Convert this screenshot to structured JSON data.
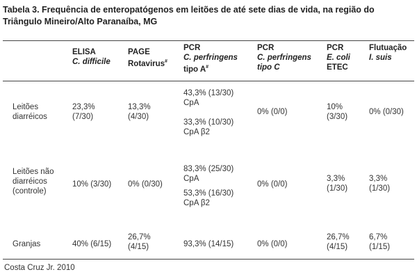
{
  "title": {
    "line1": "Tabela 3. Frequência de enteropatógenos em leitões de até sete dias de vida, na região do",
    "line2": "Triângulo Mineiro/Alto Paranaíba, MG"
  },
  "columns": [
    {
      "l1": "ELISA",
      "l2": "C. difficile",
      "l3": ""
    },
    {
      "l1": "PAGE",
      "l2": "Rotavirus",
      "sup2": "#",
      "l3": ""
    },
    {
      "l1": "PCR",
      "l2": "C. perfringens",
      "l3": "tipo A",
      "sup3": "#"
    },
    {
      "l1": "PCR",
      "l2": "C. perfringens",
      "l3": "tipo C"
    },
    {
      "l1": "PCR",
      "l2": "E. coli",
      "l3": "ETEC"
    },
    {
      "l1": "Flutuação",
      "l2": "I. suis",
      "l3": ""
    }
  ],
  "rows": [
    {
      "label": [
        "Leitões",
        "diarréicos"
      ],
      "elisa": [
        "23,3%",
        "(7/30)"
      ],
      "page": [
        "13,3%",
        "(4/30)"
      ],
      "pcr_a": [
        "43,3% (13/30)",
        "CpA",
        "33,3% (10/30)",
        "CpA β2"
      ],
      "pcr_c": [
        "0% (0/0)"
      ],
      "ecoli": [
        "10%",
        "(3/30)"
      ],
      "flut": [
        "0% (0/30)"
      ]
    },
    {
      "label": [
        "Leitões não",
        "diarréicos",
        "(controle)"
      ],
      "elisa": [
        "10% (3/30)"
      ],
      "page": [
        "0% (0/30)"
      ],
      "pcr_a": [
        "83,3% (25/30)",
        "CpA",
        "53,3% (16/30)",
        "CpA β2"
      ],
      "pcr_c": [
        "0% (0/0)"
      ],
      "ecoli": [
        "3,3%",
        "(1/30)"
      ],
      "flut": [
        "3,3%",
        "(1/30)"
      ]
    },
    {
      "label": [
        "Granjas"
      ],
      "elisa": [
        "40% (6/15)"
      ],
      "page": [
        "26,7%",
        "(4/15)"
      ],
      "pcr_a": [
        "93,3% (14/15)"
      ],
      "pcr_c": [
        "0% (0/0)"
      ],
      "ecoli": [
        "26,7%",
        "(4/15)"
      ],
      "flut": [
        "6,7%",
        "(1/15)"
      ]
    }
  ],
  "source": "Costa Cruz Jr. 2010"
}
